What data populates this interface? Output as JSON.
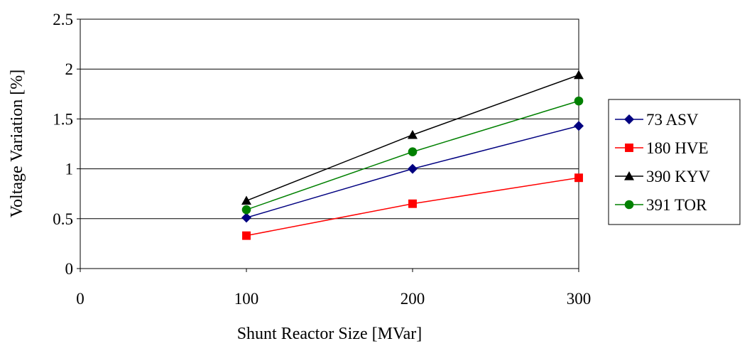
{
  "chart_data": {
    "type": "line",
    "title": "",
    "xlabel": "Shunt Reactor Size [MVar]",
    "ylabel": "Voltage Variation [%]",
    "xlim": [
      0,
      300
    ],
    "ylim": [
      0,
      2.5
    ],
    "x_ticks": [
      0,
      100,
      200,
      300
    ],
    "y_ticks": [
      0,
      0.5,
      1,
      1.5,
      2,
      2.5
    ],
    "x_tick_labels": [
      "0",
      "100",
      "200",
      "300"
    ],
    "y_tick_labels": [
      "0",
      "0.5",
      "1",
      "1.5",
      "2",
      "2.5"
    ],
    "grid": "horizontal",
    "legend_position": "right",
    "x": [
      100,
      200,
      300
    ],
    "series": [
      {
        "name": "73 ASV",
        "values": [
          0.51,
          1.0,
          1.43
        ],
        "color": "#000080",
        "marker": "diamond"
      },
      {
        "name": "180 HVE",
        "values": [
          0.33,
          0.65,
          0.91
        ],
        "color": "#ff0000",
        "marker": "square"
      },
      {
        "name": "390 KYV",
        "values": [
          0.68,
          1.34,
          1.94
        ],
        "color": "#000000",
        "marker": "triangle"
      },
      {
        "name": "391 TOR",
        "values": [
          0.59,
          1.17,
          1.68
        ],
        "color": "#008000",
        "marker": "circle"
      }
    ]
  }
}
